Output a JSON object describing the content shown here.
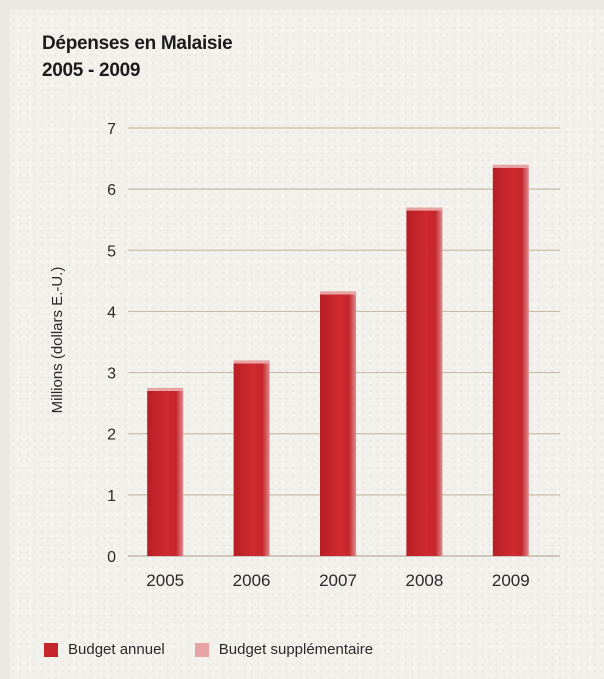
{
  "chart_data": {
    "type": "bar",
    "title": [
      "Dépenses en Malaisie",
      "2005 - 2009"
    ],
    "ylabel": "Millions (dollars E.-U.)",
    "xlabel": "",
    "categories": [
      "2005",
      "2006",
      "2007",
      "2008",
      "2009"
    ],
    "yticks": [
      "0",
      "1",
      "2",
      "3",
      "4",
      "5",
      "6",
      "7"
    ],
    "ylim": [
      0,
      7
    ],
    "grid": true,
    "series": [
      {
        "name": "Budget annuel",
        "values": [
          2.7,
          3.15,
          4.28,
          5.65,
          6.35
        ],
        "color": "#c4262c"
      },
      {
        "name": "Budget supplémentaire",
        "values": [
          0.05,
          0.05,
          0.05,
          0.05,
          0.05
        ],
        "color": "#e8a3a5"
      }
    ],
    "legend_position": "bottom-left"
  }
}
